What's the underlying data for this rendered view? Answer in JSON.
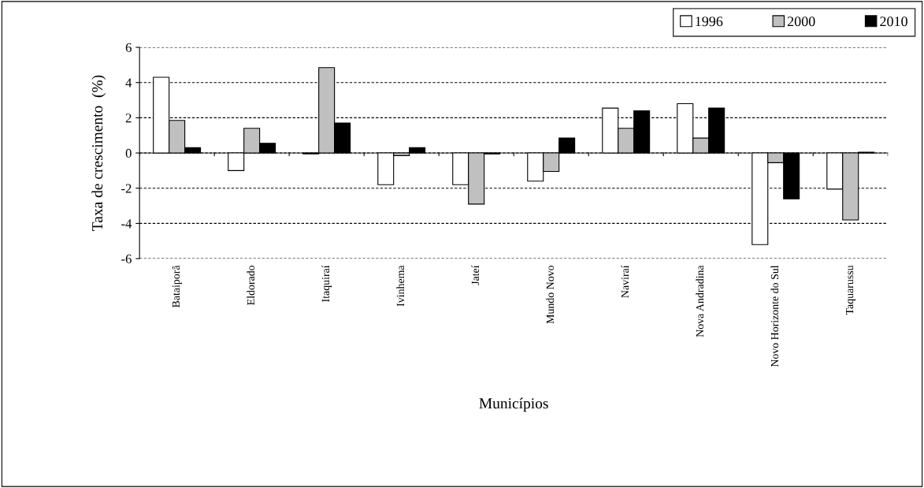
{
  "chart_data": {
    "type": "bar",
    "xlabel": "Municípios",
    "ylabel": "Taxa de crescimento  (%)",
    "categories": [
      "Bataiporã",
      "Eldorado",
      "Itaquiraí",
      "Ivinhema",
      "Jateí",
      "Mundo Novo",
      "Naviraí",
      "Nova Andradina",
      "Novo Horizonte do Sul",
      "Taquarussu"
    ],
    "series": [
      {
        "name": "1996",
        "color": "#ffffff",
        "values": [
          4.3,
          -1.0,
          -0.05,
          -1.8,
          -1.8,
          -1.6,
          2.55,
          2.8,
          -5.2,
          -2.05
        ]
      },
      {
        "name": "2000",
        "color": "#c0c0c0",
        "values": [
          1.85,
          1.4,
          4.85,
          -0.15,
          -2.9,
          -1.05,
          1.4,
          0.85,
          -0.55,
          -3.8
        ]
      },
      {
        "name": "2010",
        "color": "#000000",
        "values": [
          0.3,
          0.55,
          1.7,
          0.3,
          -0.05,
          0.85,
          2.4,
          2.55,
          -2.6,
          0.05
        ]
      }
    ],
    "ylim": [
      -6,
      6
    ],
    "yticks": [
      -6,
      -4,
      -2,
      0,
      2,
      4,
      6
    ],
    "grid": "y",
    "legend": "top right"
  }
}
